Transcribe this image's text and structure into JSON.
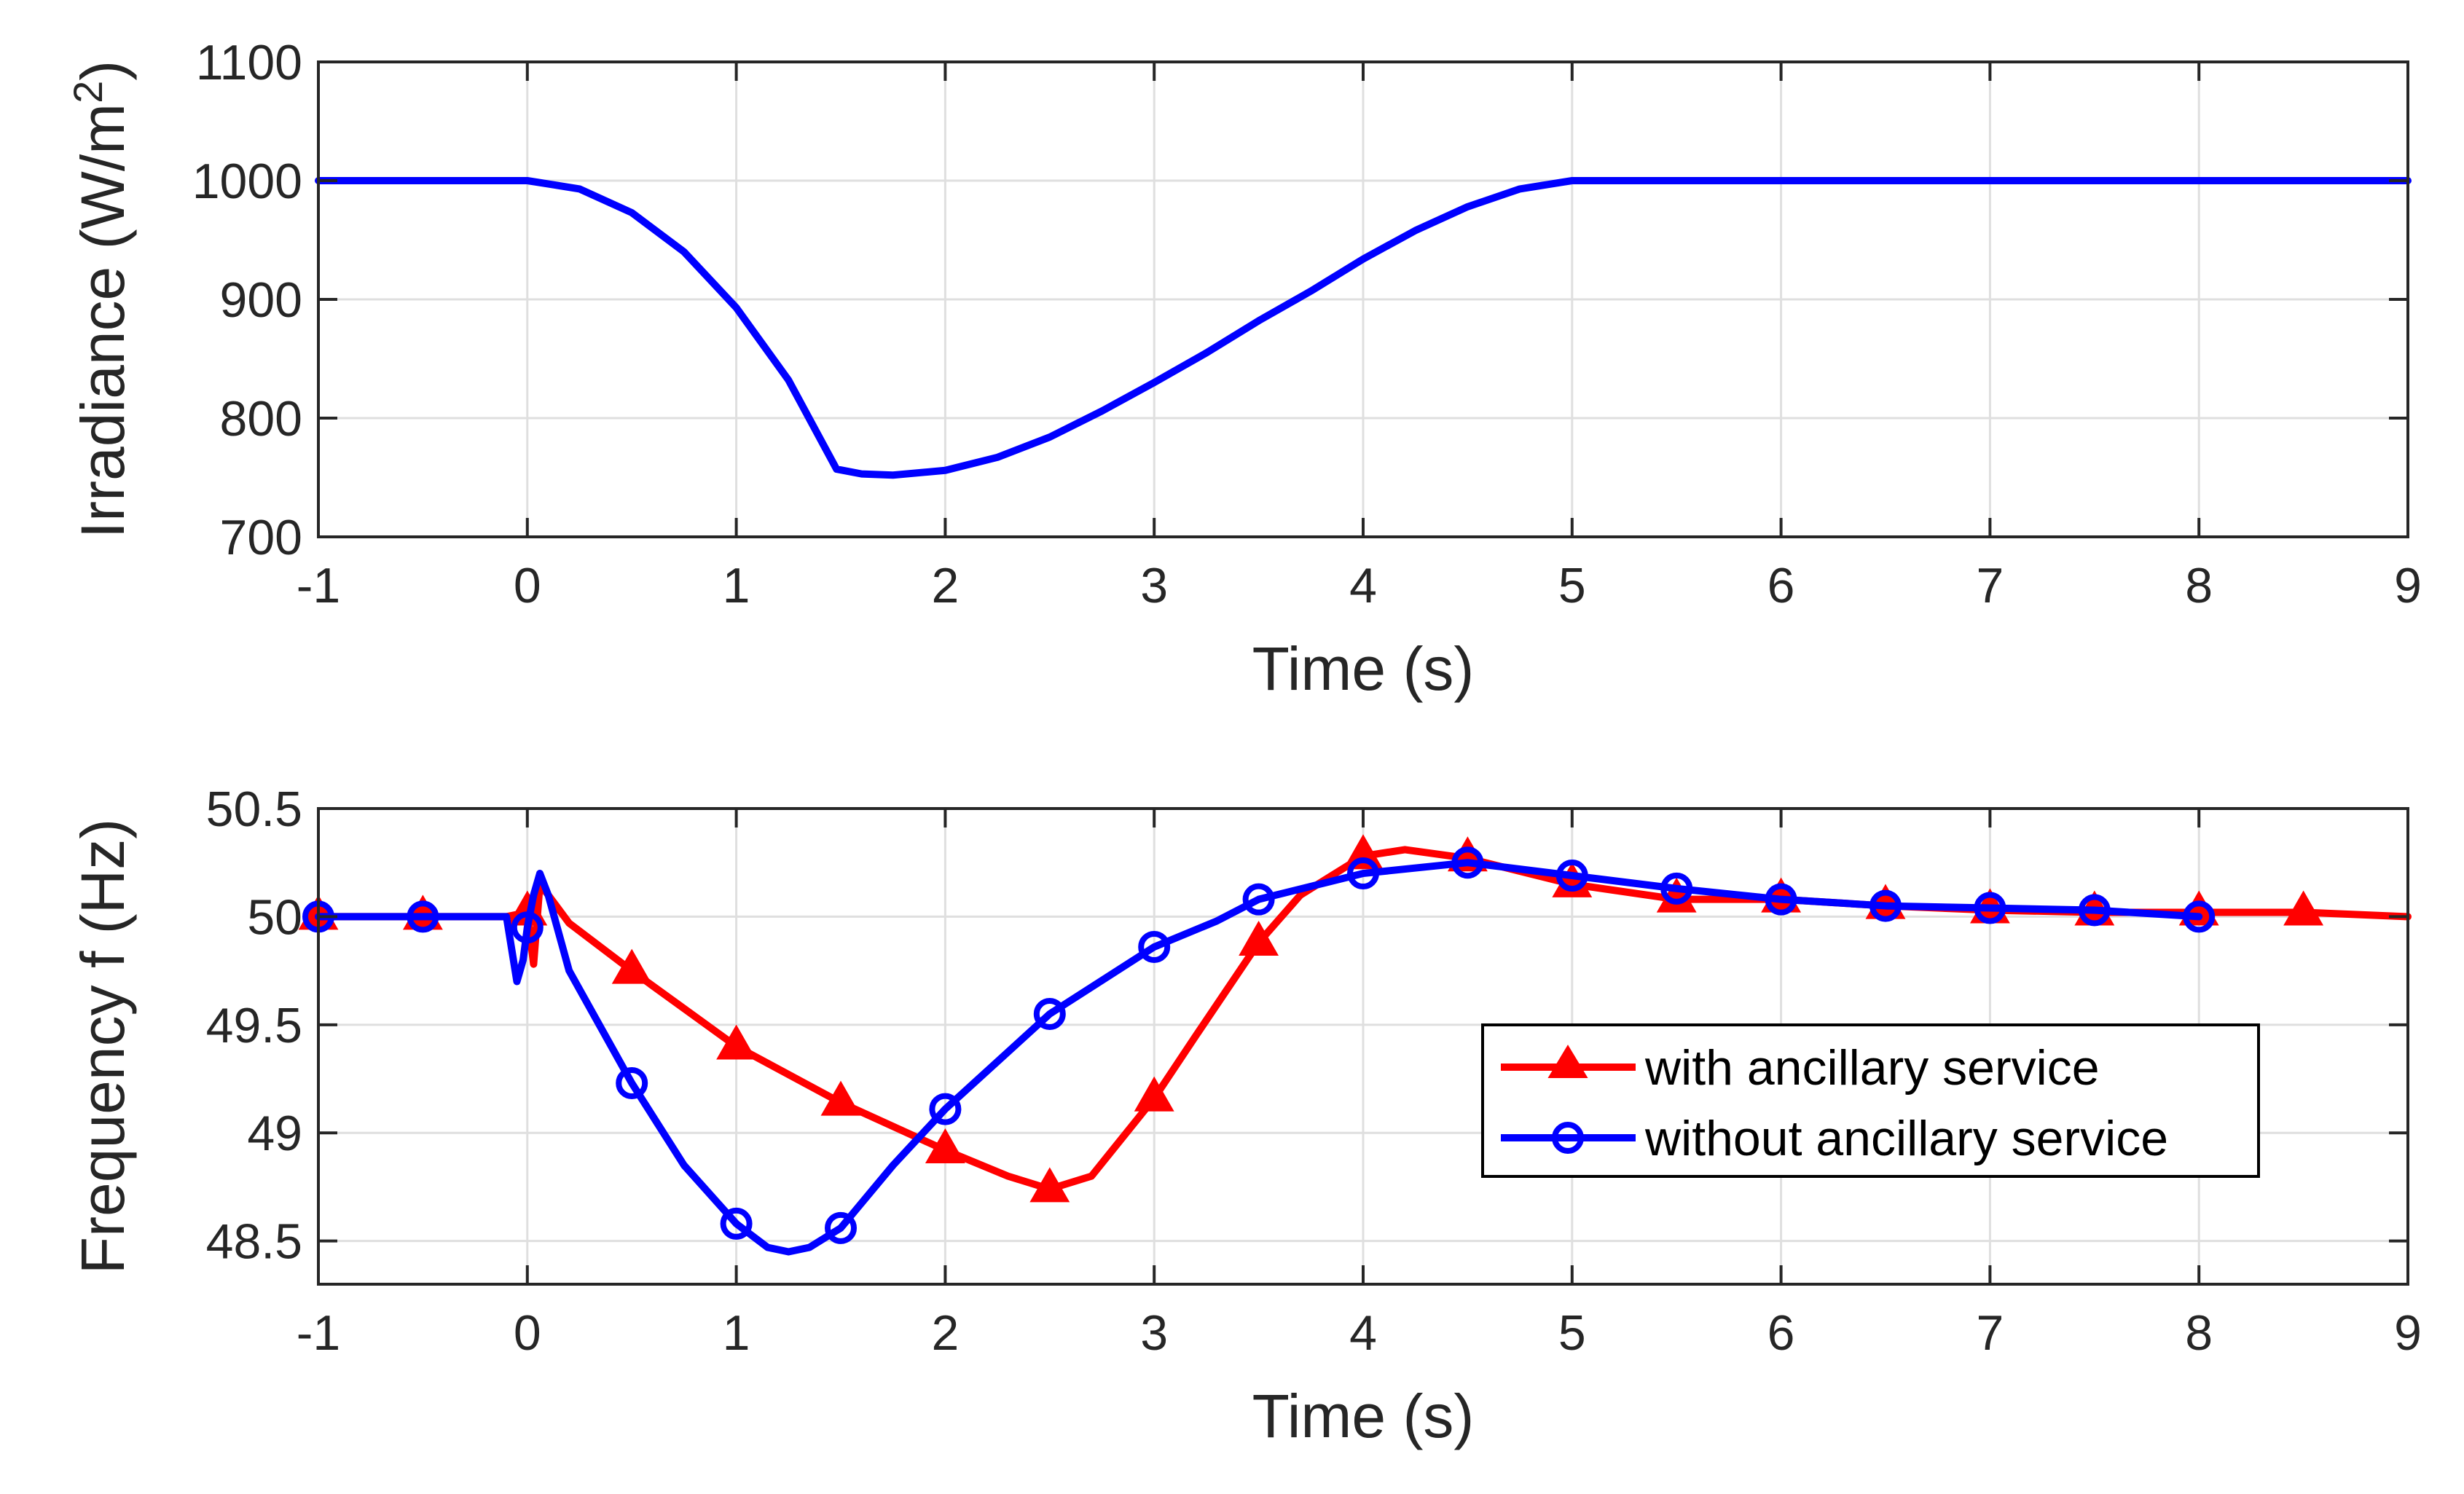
{
  "chart_data": [
    {
      "type": "line",
      "title": "",
      "xlabel": "Time (s)",
      "ylabel_main": "Irradiance (W/m",
      "ylabel_sup": "2",
      "ylabel_end": ")",
      "xlim": [
        -1,
        9
      ],
      "ylim": [
        700,
        1100
      ],
      "xticks": [
        "-1",
        "0",
        "1",
        "2",
        "3",
        "4",
        "5",
        "6",
        "7",
        "8",
        "9"
      ],
      "yticks": [
        "700",
        "800",
        "900",
        "1000",
        "1100"
      ],
      "grid": true,
      "series": [
        {
          "name": "Irradiance",
          "color": "#0000ff",
          "x": [
            -1,
            0,
            0.25,
            0.5,
            0.75,
            1.0,
            1.25,
            1.48,
            1.6,
            1.75,
            2.0,
            2.25,
            2.5,
            2.75,
            3.0,
            3.25,
            3.5,
            3.75,
            4.0,
            4.25,
            4.5,
            4.75,
            5.0,
            6,
            7,
            8,
            9
          ],
          "y": [
            1000,
            1000,
            993,
            973,
            940,
            893,
            832,
            757,
            753,
            752,
            756,
            767,
            784,
            806,
            830,
            855,
            882,
            907,
            934,
            958,
            978,
            993,
            1000,
            1000,
            1000,
            1000,
            1000
          ]
        }
      ]
    },
    {
      "type": "line",
      "title": "",
      "xlabel": "Time (s)",
      "ylabel": "Frequency f (Hz)",
      "xlim": [
        -1,
        9
      ],
      "ylim": [
        48.3,
        50.5
      ],
      "xticks": [
        "-1",
        "0",
        "1",
        "2",
        "3",
        "4",
        "5",
        "6",
        "7",
        "8",
        "9"
      ],
      "yticks": [
        "48.5",
        "49",
        "49.5",
        "50",
        "50.5"
      ],
      "grid": true,
      "legend_position": "lower-right",
      "series": [
        {
          "name": "with ancillary service",
          "color": "#ff0000",
          "marker": "triangle",
          "x": [
            -1,
            -0.5,
            -0.1,
            0.0,
            0.03,
            0.06,
            0.1,
            0.2,
            0.5,
            1.0,
            1.5,
            2.0,
            2.3,
            2.5,
            2.7,
            3.0,
            3.2,
            3.5,
            3.7,
            4.0,
            4.2,
            4.5,
            5.0,
            5.5,
            6.0,
            6.5,
            7.0,
            7.5,
            8.0,
            8.5,
            9.0
          ],
          "y": [
            50.0,
            50.0,
            50.0,
            50.02,
            49.78,
            50.15,
            50.1,
            49.97,
            49.75,
            49.4,
            49.14,
            48.92,
            48.8,
            48.74,
            48.8,
            49.16,
            49.45,
            49.88,
            50.1,
            50.28,
            50.31,
            50.27,
            50.15,
            50.08,
            50.08,
            50.05,
            50.03,
            50.02,
            50.02,
            50.02,
            50.0
          ],
          "marker_x": [
            -1,
            -0.5,
            0.0,
            0.5,
            1.0,
            1.5,
            2.0,
            2.5,
            3.0,
            3.5,
            4.0,
            4.5,
            5.0,
            5.5,
            6.0,
            6.5,
            7.0,
            7.5,
            8.0,
            8.5
          ]
        },
        {
          "name": "without ancillary service",
          "color": "#0000ff",
          "marker": "circle",
          "x": [
            -1,
            -0.5,
            -0.1,
            -0.05,
            -0.02,
            0.0,
            0.03,
            0.06,
            0.1,
            0.2,
            0.5,
            0.75,
            1.0,
            1.15,
            1.25,
            1.35,
            1.5,
            1.75,
            2.0,
            2.5,
            3.0,
            3.3,
            3.5,
            4.0,
            4.5,
            5.0,
            5.5,
            6.0,
            6.5,
            7.0,
            7.5,
            8.0
          ],
          "y": [
            50.0,
            50.0,
            50.0,
            49.7,
            49.8,
            49.95,
            50.1,
            50.2,
            50.1,
            49.75,
            49.23,
            48.85,
            48.58,
            48.47,
            48.45,
            48.47,
            48.56,
            48.85,
            49.11,
            49.55,
            49.86,
            49.98,
            50.08,
            50.2,
            50.25,
            50.19,
            50.13,
            50.08,
            50.05,
            50.04,
            50.03,
            50.0
          ],
          "marker_x": [
            -1,
            -0.5,
            0.0,
            0.5,
            1.0,
            1.5,
            2.0,
            2.5,
            3.0,
            3.5,
            4.0,
            4.5,
            5.0,
            5.5,
            6.0,
            6.5,
            7.0,
            7.5,
            8.0
          ]
        }
      ]
    }
  ]
}
